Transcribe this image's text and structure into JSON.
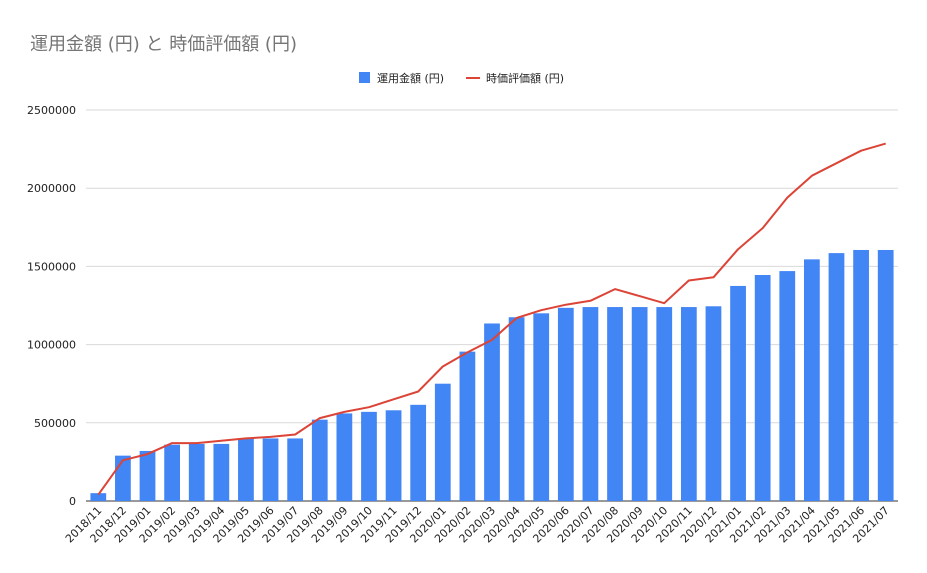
{
  "chart_data": {
    "type": "bar",
    "title": "運用金額 (円) と 時価評価額 (円)",
    "xlabel": "",
    "ylabel": "",
    "ylim": [
      0,
      2500000
    ],
    "yticks": [
      "0",
      "500000",
      "1000000",
      "1500000",
      "2000000",
      "2500000"
    ],
    "grid": true,
    "legend_position": "top",
    "categories": [
      "2018/11",
      "2018/12",
      "2019/01",
      "2019/02",
      "2019/03",
      "2019/04",
      "2019/05",
      "2019/06",
      "2019/07",
      "2019/08",
      "2019/09",
      "2019/10",
      "2019/11",
      "2019/12",
      "2020/01",
      "2020/02",
      "2020/03",
      "2020/04",
      "2020/05",
      "2020/06",
      "2020/07",
      "2020/08",
      "2020/09",
      "2020/10",
      "2020/11",
      "2020/12",
      "2021/01",
      "2021/02",
      "2021/03",
      "2021/04",
      "2021/05",
      "2021/06",
      "2021/07"
    ],
    "series": [
      {
        "name": "運用金額 (円)",
        "type": "bar",
        "color": "#4285f4",
        "values": [
          50000,
          290000,
          320000,
          360000,
          365000,
          365000,
          400000,
          400000,
          400000,
          520000,
          560000,
          570000,
          580000,
          615000,
          750000,
          955000,
          1135000,
          1175000,
          1200000,
          1235000,
          1240000,
          1240000,
          1240000,
          1240000,
          1240000,
          1245000,
          1375000,
          1445000,
          1470000,
          1545000,
          1585000,
          1605000,
          1605000
        ]
      },
      {
        "name": "時価評価額 (円)",
        "type": "line",
        "color": "#db4437",
        "values": [
          40000,
          260000,
          300000,
          370000,
          370000,
          385000,
          400000,
          410000,
          425000,
          530000,
          570000,
          600000,
          650000,
          700000,
          860000,
          950000,
          1030000,
          1170000,
          1220000,
          1255000,
          1280000,
          1355000,
          1310000,
          1265000,
          1410000,
          1430000,
          1610000,
          1745000,
          1940000,
          2080000,
          2160000,
          2240000,
          2285000
        ]
      }
    ]
  }
}
